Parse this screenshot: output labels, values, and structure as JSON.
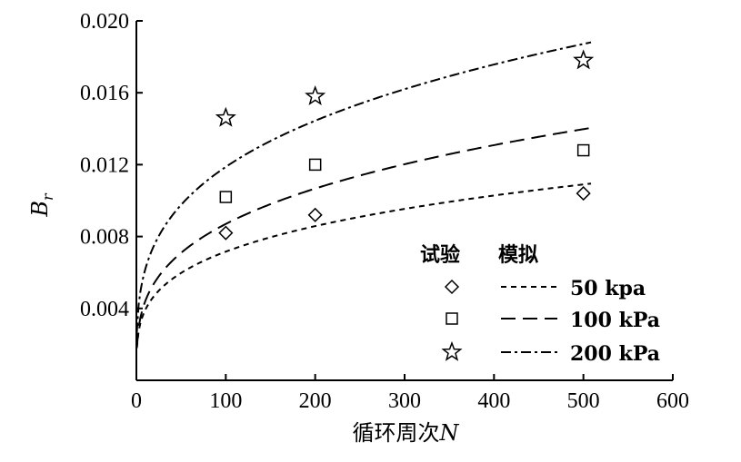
{
  "chart_data": {
    "type": "scatter",
    "xlabel": "循环周次N",
    "ylabel": "Br",
    "xlim": [
      0,
      600
    ],
    "ylim": [
      0,
      0.02
    ],
    "x_ticks": [
      "0",
      "100",
      "200",
      "300",
      "400",
      "500",
      "600"
    ],
    "y_ticks": [
      "0.004",
      "0.008",
      "0.012",
      "0.016",
      "0.020"
    ],
    "legend": {
      "header_test": "试验",
      "header_sim": "模拟",
      "placement": "lower-right"
    },
    "series": [
      {
        "name": "50 kpa",
        "marker": "diamond",
        "dash": "short-dash",
        "points": [
          [
            100,
            0.0082
          ],
          [
            200,
            0.0092
          ],
          [
            500,
            0.0104
          ]
        ],
        "fit_a": 0.00215,
        "fit_b": 0.2612
      },
      {
        "name": "100 kPa",
        "marker": "square",
        "dash": "long-dash",
        "points": [
          [
            100,
            0.0102
          ],
          [
            200,
            0.012
          ],
          [
            500,
            0.0128
          ]
        ],
        "fit_a": 0.00224,
        "fit_b": 0.2946
      },
      {
        "name": "200 kPa",
        "marker": "star",
        "dash": "dash-dot",
        "points": [
          [
            100,
            0.0146
          ],
          [
            200,
            0.0158
          ],
          [
            500,
            0.0178
          ]
        ],
        "fit_a": 0.00323,
        "fit_b": 0.2827
      }
    ]
  }
}
